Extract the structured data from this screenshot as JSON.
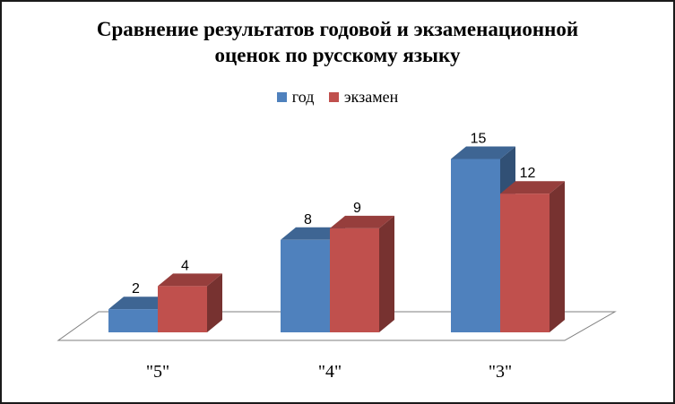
{
  "chart_data": {
    "type": "bar",
    "title_lines": [
      "Сравнение результатов годовой и экзаменационной",
      "оценок по русскому языку"
    ],
    "categories": [
      "\"5\"",
      "\"4\"",
      "\"3\""
    ],
    "series": [
      {
        "name": "год",
        "values": [
          2,
          8,
          15
        ],
        "color": "#4f81bd"
      },
      {
        "name": "экзамен",
        "values": [
          4,
          9,
          12
        ],
        "color": "#c0504d"
      }
    ],
    "ylim": [
      0,
      16
    ],
    "grid": false,
    "legend_position": "top",
    "style": "3d-clustered-column"
  }
}
